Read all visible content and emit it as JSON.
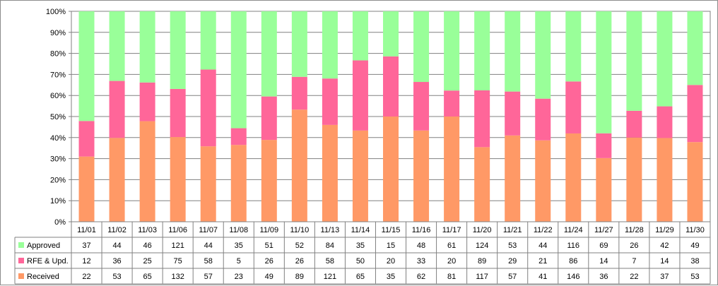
{
  "chart_data": {
    "type": "bar",
    "stacked": "percent",
    "categories": [
      "11/01",
      "11/02",
      "11/03",
      "11/06",
      "11/07",
      "11/08",
      "11/09",
      "11/10",
      "11/13",
      "11/14",
      "11/15",
      "11/16",
      "11/17",
      "11/20",
      "11/21",
      "11/22",
      "11/24",
      "11/27",
      "11/28",
      "11/29",
      "11/30"
    ],
    "series": [
      {
        "name": "Received",
        "color": "#ff9966",
        "values": [
          22,
          53,
          65,
          132,
          57,
          23,
          49,
          89,
          121,
          65,
          35,
          62,
          81,
          117,
          57,
          41,
          146,
          36,
          22,
          37,
          53
        ]
      },
      {
        "name": "RFE & Upd.",
        "color": "#ff6699",
        "values": [
          12,
          36,
          25,
          75,
          58,
          5,
          26,
          26,
          58,
          50,
          20,
          33,
          20,
          89,
          29,
          21,
          86,
          14,
          7,
          14,
          38
        ]
      },
      {
        "name": "Approved",
        "color": "#99ff99",
        "values": [
          37,
          44,
          46,
          121,
          44,
          35,
          51,
          52,
          84,
          35,
          15,
          48,
          61,
          124,
          53,
          44,
          116,
          69,
          26,
          42,
          49
        ]
      }
    ],
    "yticks": [
      "0%",
      "10%",
      "20%",
      "30%",
      "40%",
      "50%",
      "60%",
      "70%",
      "80%",
      "90%",
      "100%"
    ],
    "ylim": [
      0,
      100
    ],
    "grid": true,
    "legend": "data-table-left",
    "table_order": [
      "Approved",
      "RFE & Upd.",
      "Received"
    ]
  }
}
